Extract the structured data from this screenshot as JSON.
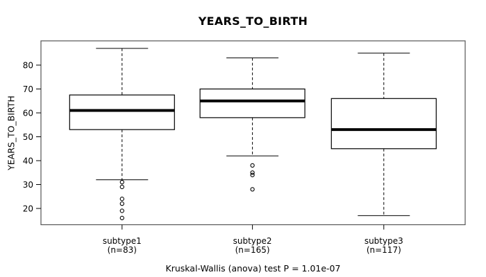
{
  "title": "YEARS_TO_BIRTH",
  "caption": "Kruskal-Wallis (anova) test P = 1.01e-07",
  "colors": {
    "foreground": "#000000",
    "background": "#ffffff",
    "frame": "#555555"
  },
  "y_axis": {
    "label": "YEARS_TO_BIRTH",
    "ticks": [
      20,
      30,
      40,
      50,
      60,
      70,
      80
    ]
  },
  "x_axis": {
    "categories": [
      "subtype1",
      "subtype2",
      "subtype3"
    ],
    "sublabels": [
      "(n=83)",
      "(n=165)",
      "(n=117)"
    ]
  },
  "chart_data": {
    "type": "boxplot",
    "title": "YEARS_TO_BIRTH",
    "xlabel": "",
    "ylabel": "YEARS_TO_BIRTH",
    "ylim": [
      13,
      90
    ],
    "y_ticks": [
      20,
      30,
      40,
      50,
      60,
      70,
      80
    ],
    "grid": false,
    "annotation": "Kruskal-Wallis (anova) test P = 1.01e-07",
    "categories": [
      "subtype1",
      "subtype2",
      "subtype3"
    ],
    "series": [
      {
        "name": "subtype1",
        "n": 83,
        "whisker_low": 32,
        "q1": 53,
        "median": 61,
        "q3": 67.5,
        "whisker_high": 87,
        "outliers": [
          31,
          29,
          24,
          22,
          19,
          16
        ]
      },
      {
        "name": "subtype2",
        "n": 165,
        "whisker_low": 42,
        "q1": 58,
        "median": 65,
        "q3": 70,
        "whisker_high": 83,
        "outliers": [
          38,
          35,
          34,
          28
        ]
      },
      {
        "name": "subtype3",
        "n": 117,
        "whisker_low": 17,
        "q1": 45,
        "median": 53,
        "q3": 66,
        "whisker_high": 85,
        "outliers": []
      }
    ]
  }
}
